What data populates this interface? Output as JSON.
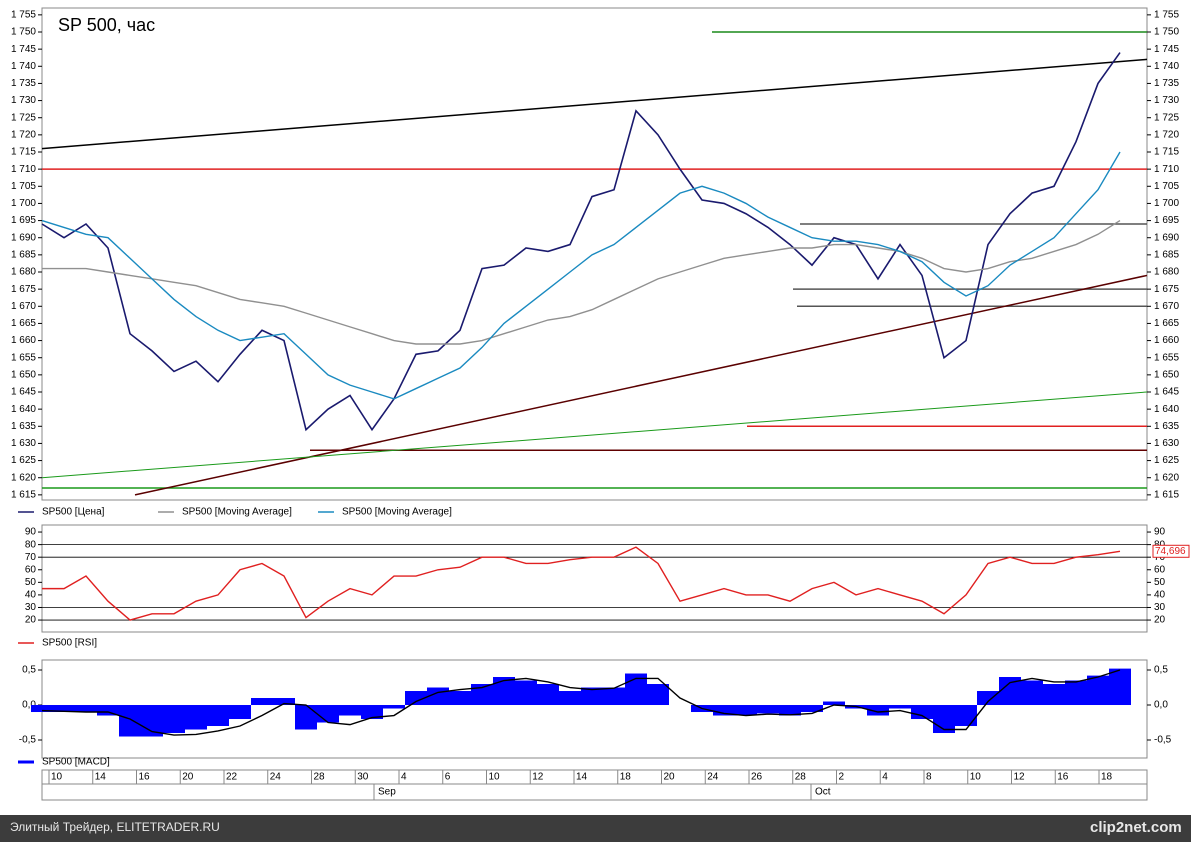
{
  "footer": "Элитный Трейдер, ELITETRADER.RU",
  "watermark": "clip2net.com",
  "x_labels": [
    "10",
    "14",
    "16",
    "20",
    "22",
    "24",
    "28",
    "30",
    "4",
    "6",
    "10",
    "12",
    "14",
    "18",
    "20",
    "24",
    "26",
    "28",
    "2",
    "4",
    "8",
    "10",
    "12",
    "16",
    "18"
  ],
  "months": [
    "Sep",
    "Oct"
  ],
  "chart_data": [
    {
      "type": "line",
      "title": "SP 500, час",
      "ylim": [
        1613.5,
        1757
      ],
      "yticks": [
        {
          "value": 1615,
          "label": "1 615"
        },
        {
          "value": 1620,
          "label": "1 620"
        },
        {
          "value": 1625,
          "label": "1 625"
        },
        {
          "value": 1630,
          "label": "1 630"
        },
        {
          "value": 1635,
          "label": "1 635"
        },
        {
          "value": 1640,
          "label": "1 640"
        },
        {
          "value": 1645,
          "label": "1 645"
        },
        {
          "value": 1650,
          "label": "1 650"
        },
        {
          "value": 1655,
          "label": "1 655"
        },
        {
          "value": 1660,
          "label": "1 660"
        },
        {
          "value": 1665,
          "label": "1 665"
        },
        {
          "value": 1670,
          "label": "1 670"
        },
        {
          "value": 1675,
          "label": "1 675"
        },
        {
          "value": 1680,
          "label": "1 680"
        },
        {
          "value": 1685,
          "label": "1 685"
        },
        {
          "value": 1690,
          "label": "1 690"
        },
        {
          "value": 1695,
          "label": "1 695"
        },
        {
          "value": 1700,
          "label": "1 700"
        },
        {
          "value": 1705,
          "label": "1 705"
        },
        {
          "value": 1710,
          "label": "1 710"
        },
        {
          "value": 1715,
          "label": "1 715"
        },
        {
          "value": 1720,
          "label": "1 720"
        },
        {
          "value": 1725,
          "label": "1 725"
        },
        {
          "value": 1730,
          "label": "1 730"
        },
        {
          "value": 1735,
          "label": "1 735"
        },
        {
          "value": 1740,
          "label": "1 740"
        },
        {
          "value": 1745,
          "label": "1 745"
        },
        {
          "value": 1750,
          "label": "1 750"
        },
        {
          "value": 1755,
          "label": "1 755"
        }
      ],
      "series": [
        {
          "name": "SP500 [Цена]",
          "color": "#1a1a6e",
          "values": [
            1694,
            1690,
            1694,
            1687,
            1662,
            1657,
            1651,
            1654,
            1648,
            1656,
            1663,
            1660,
            1634,
            1640,
            1644,
            1634,
            1643,
            1656,
            1657,
            1663,
            1681,
            1682,
            1687,
            1686,
            1688,
            1702,
            1704,
            1727,
            1720,
            1710,
            1701,
            1700,
            1697,
            1693,
            1688,
            1682,
            1690,
            1688,
            1678,
            1688,
            1679,
            1655,
            1660,
            1688,
            1697,
            1703,
            1705,
            1718,
            1735,
            1744
          ]
        },
        {
          "name": "SP500 [Moving Average]",
          "color": "#909090",
          "values": [
            1681,
            1681,
            1681,
            1680,
            1679,
            1678,
            1677,
            1676,
            1674,
            1672,
            1671,
            1670,
            1668,
            1666,
            1664,
            1662,
            1660,
            1659,
            1659,
            1659,
            1660,
            1662,
            1664,
            1666,
            1667,
            1669,
            1672,
            1675,
            1678,
            1680,
            1682,
            1684,
            1685,
            1686,
            1687,
            1687,
            1688,
            1688,
            1687,
            1686,
            1684,
            1681,
            1680,
            1681,
            1683,
            1684,
            1686,
            1688,
            1691,
            1695
          ]
        },
        {
          "name": "SP500 [Moving Average]",
          "color": "#1a8ac0",
          "values": [
            1695,
            1693,
            1691,
            1690,
            1684,
            1678,
            1672,
            1667,
            1663,
            1660,
            1661,
            1662,
            1656,
            1650,
            1647,
            1645,
            1643,
            1646,
            1649,
            1652,
            1658,
            1665,
            1670,
            1675,
            1680,
            1685,
            1688,
            1693,
            1698,
            1703,
            1705,
            1703,
            1700,
            1696,
            1693,
            1690,
            1689,
            1689,
            1688,
            1686,
            1683,
            1677,
            1673,
            1676,
            1682,
            1686,
            1690,
            1697,
            1704,
            1715
          ]
        }
      ],
      "hlines": [
        {
          "value": 1750,
          "color": "#1a8a1a"
        },
        {
          "value": 1710,
          "color": "#e02020"
        },
        {
          "value": 1694,
          "color": "#555555"
        },
        {
          "value": 1675,
          "color": "#555555"
        },
        {
          "value": 1670,
          "color": "#555555"
        },
        {
          "value": 1635,
          "color": "#e02020"
        },
        {
          "value": 1628,
          "color": "#600000"
        },
        {
          "value": 1617,
          "color": "#1a9a1a"
        }
      ],
      "trendlines": [
        {
          "color": "#000000",
          "values": [
            1716,
            1742
          ]
        },
        {
          "color": "#5a0000",
          "values": [
            1615,
            1679
          ]
        },
        {
          "color": "#1a9a1a",
          "values": [
            1620,
            1645
          ]
        }
      ]
    },
    {
      "type": "line",
      "ylim": [
        10.5,
        95.6
      ],
      "yticks": [
        20,
        30,
        40,
        50,
        60,
        70,
        80,
        90
      ],
      "series": [
        {
          "name": "SP500 [RSI]",
          "color": "#e02020",
          "values": [
            45,
            45,
            55,
            35,
            20,
            25,
            25,
            35,
            40,
            60,
            65,
            55,
            22,
            35,
            45,
            40,
            55,
            55,
            60,
            62,
            70,
            70,
            65,
            65,
            68,
            70,
            70,
            78,
            65,
            35,
            40,
            45,
            40,
            40,
            35,
            45,
            50,
            40,
            45,
            40,
            35,
            25,
            40,
            65,
            70,
            65,
            65,
            70,
            72,
            74.696
          ]
        }
      ],
      "hlines": [
        {
          "value": 20,
          "color": "#000000"
        },
        {
          "value": 30,
          "color": "#000000"
        },
        {
          "value": 70,
          "color": "#000000"
        },
        {
          "value": 80,
          "color": "#000000"
        }
      ],
      "last_value_label": "74,696"
    },
    {
      "type": "bar",
      "ylim": [
        -0.757,
        0.643
      ],
      "yticks": [
        {
          "value": -0.5,
          "label": "-0,5"
        },
        {
          "value": 0,
          "label": "0,0"
        },
        {
          "value": 0.5,
          "label": "0,5"
        }
      ],
      "series": [
        {
          "name": "SP500 [MACD]",
          "color": "#0000ff",
          "values": [
            -0.1,
            -0.1,
            -0.1,
            -0.15,
            -0.45,
            -0.45,
            -0.4,
            -0.35,
            -0.3,
            -0.2,
            0.1,
            0.1,
            -0.35,
            -0.25,
            -0.15,
            -0.2,
            -0.05,
            0.2,
            0.25,
            0.2,
            0.3,
            0.4,
            0.35,
            0.3,
            0.2,
            0.25,
            0.25,
            0.45,
            0.3,
            0.0,
            -0.1,
            -0.15,
            -0.15,
            -0.12,
            -0.15,
            -0.1,
            0.05,
            -0.05,
            -0.15,
            -0.05,
            -0.2,
            -0.4,
            -0.3,
            0.2,
            0.4,
            0.35,
            0.3,
            0.35,
            0.42,
            0.52
          ]
        },
        {
          "type": "line",
          "color": "#000000",
          "values": [
            -0.08,
            -0.09,
            -0.1,
            -0.1,
            -0.2,
            -0.38,
            -0.43,
            -0.42,
            -0.37,
            -0.3,
            -0.15,
            0.02,
            0.0,
            -0.25,
            -0.28,
            -0.18,
            -0.15,
            0.05,
            0.18,
            0.22,
            0.25,
            0.35,
            0.38,
            0.33,
            0.25,
            0.22,
            0.24,
            0.38,
            0.38,
            0.1,
            -0.05,
            -0.12,
            -0.15,
            -0.13,
            -0.14,
            -0.12,
            0.0,
            -0.02,
            -0.1,
            -0.08,
            -0.15,
            -0.35,
            -0.35,
            0.05,
            0.32,
            0.38,
            0.33,
            0.33,
            0.4,
            0.5
          ]
        }
      ]
    }
  ]
}
